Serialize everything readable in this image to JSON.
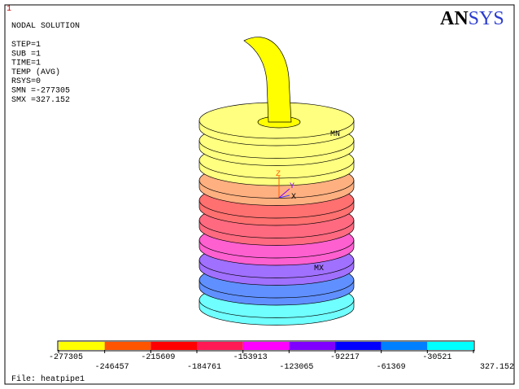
{
  "window_number": "1",
  "info": [
    "NODAL SOLUTION",
    "STEP=1",
    "SUB =1",
    "TIME=1",
    "TEMP     (AVG)",
    "RSYS=0",
    "SMN =-277305",
    "SMX =327.152"
  ],
  "logo": {
    "bold": "AN",
    "rest": "SYS"
  },
  "annotations": {
    "min": "MN",
    "max": "MX",
    "axis_z": "Z",
    "axis_y": "Y",
    "axis_x": "X"
  },
  "legend": {
    "colors": [
      "#ffff00",
      "#ff5500",
      "#ff0000",
      "#ff1a55",
      "#ff00ff",
      "#8000ff",
      "#0000ff",
      "#0080ff",
      "#00ffff"
    ],
    "labels": [
      "-277305",
      "-246457",
      "-215609",
      "-184761",
      "-153913",
      "-123065",
      "-92217",
      "-61369",
      "-30521",
      "327.152"
    ]
  },
  "file": "File: heatpipe1"
}
